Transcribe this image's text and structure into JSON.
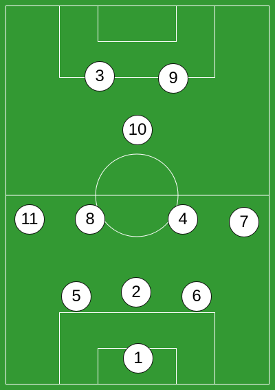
{
  "pitch": {
    "grass_color": "#339933",
    "line_color": "#ffffff",
    "marker_color": "#ffffff",
    "marker_border_color": "#111111"
  },
  "players": [
    {
      "number": "3"
    },
    {
      "number": "9"
    },
    {
      "number": "10"
    },
    {
      "number": "11"
    },
    {
      "number": "8"
    },
    {
      "number": "4"
    },
    {
      "number": "7"
    },
    {
      "number": "5"
    },
    {
      "number": "2"
    },
    {
      "number": "6"
    },
    {
      "number": "1"
    }
  ]
}
